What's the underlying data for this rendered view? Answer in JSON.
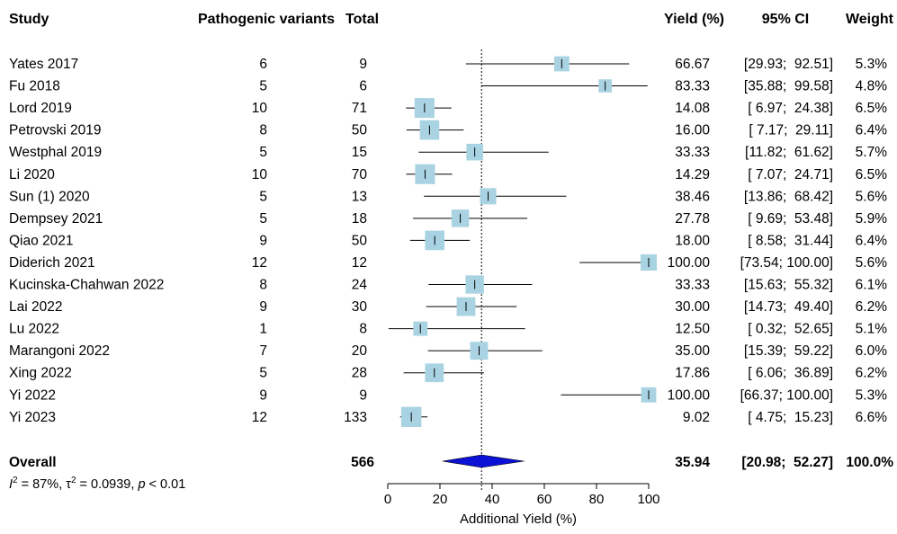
{
  "chart_data": {
    "type": "forest",
    "headers": {
      "study": "Study",
      "events": "Pathogenic variants",
      "total": "Total",
      "yield": "Yield (%)",
      "ci": "95% CI",
      "weight": "Weight"
    },
    "rows": [
      {
        "study": "Yates 2017",
        "events": "6",
        "total": "9",
        "yield": 66.67,
        "ci_low": 29.93,
        "ci_high": 92.51,
        "yield_text": "66.67",
        "ci_text": "[29.93;  92.51]",
        "weight": 5.3,
        "weight_text": "5.3%"
      },
      {
        "study": "Fu 2018",
        "events": "5",
        "total": "6",
        "yield": 83.33,
        "ci_low": 35.88,
        "ci_high": 99.58,
        "yield_text": "83.33",
        "ci_text": "[35.88;  99.58]",
        "weight": 4.8,
        "weight_text": "4.8%"
      },
      {
        "study": "Lord 2019",
        "events": "10",
        "total": "71",
        "yield": 14.08,
        "ci_low": 6.97,
        "ci_high": 24.38,
        "yield_text": "14.08",
        "ci_text": "[ 6.97;  24.38]",
        "weight": 6.5,
        "weight_text": "6.5%"
      },
      {
        "study": "Petrovski 2019",
        "events": "8",
        "total": "50",
        "yield": 16.0,
        "ci_low": 7.17,
        "ci_high": 29.11,
        "yield_text": "16.00",
        "ci_text": "[ 7.17;  29.11]",
        "weight": 6.4,
        "weight_text": "6.4%"
      },
      {
        "study": "Westphal 2019",
        "events": "5",
        "total": "15",
        "yield": 33.33,
        "ci_low": 11.82,
        "ci_high": 61.62,
        "yield_text": "33.33",
        "ci_text": "[11.82;  61.62]",
        "weight": 5.7,
        "weight_text": "5.7%"
      },
      {
        "study": "Li 2020",
        "events": "10",
        "total": "70",
        "yield": 14.29,
        "ci_low": 7.07,
        "ci_high": 24.71,
        "yield_text": "14.29",
        "ci_text": "[ 7.07;  24.71]",
        "weight": 6.5,
        "weight_text": "6.5%"
      },
      {
        "study": "Sun (1) 2020",
        "events": "5",
        "total": "13",
        "yield": 38.46,
        "ci_low": 13.86,
        "ci_high": 68.42,
        "yield_text": "38.46",
        "ci_text": "[13.86;  68.42]",
        "weight": 5.6,
        "weight_text": "5.6%"
      },
      {
        "study": "Dempsey 2021",
        "events": "5",
        "total": "18",
        "yield": 27.78,
        "ci_low": 9.69,
        "ci_high": 53.48,
        "yield_text": "27.78",
        "ci_text": "[ 9.69;  53.48]",
        "weight": 5.9,
        "weight_text": "5.9%"
      },
      {
        "study": "Qiao 2021",
        "events": "9",
        "total": "50",
        "yield": 18.0,
        "ci_low": 8.58,
        "ci_high": 31.44,
        "yield_text": "18.00",
        "ci_text": "[ 8.58;  31.44]",
        "weight": 6.4,
        "weight_text": "6.4%"
      },
      {
        "study": "Diderich 2021",
        "events": "12",
        "total": "12",
        "yield": 100.0,
        "ci_low": 73.54,
        "ci_high": 100.0,
        "yield_text": "100.00",
        "ci_text": "[73.54; 100.00]",
        "weight": 5.6,
        "weight_text": "5.6%"
      },
      {
        "study": "Kucinska-Chahwan 2022",
        "events": "8",
        "total": "24",
        "yield": 33.33,
        "ci_low": 15.63,
        "ci_high": 55.32,
        "yield_text": "33.33",
        "ci_text": "[15.63;  55.32]",
        "weight": 6.1,
        "weight_text": "6.1%"
      },
      {
        "study": "Lai 2022",
        "events": "9",
        "total": "30",
        "yield": 30.0,
        "ci_low": 14.73,
        "ci_high": 49.4,
        "yield_text": "30.00",
        "ci_text": "[14.73;  49.40]",
        "weight": 6.2,
        "weight_text": "6.2%"
      },
      {
        "study": "Lu 2022",
        "events": "1",
        "total": "8",
        "yield": 12.5,
        "ci_low": 0.32,
        "ci_high": 52.65,
        "yield_text": "12.50",
        "ci_text": "[ 0.32;  52.65]",
        "weight": 5.1,
        "weight_text": "5.1%"
      },
      {
        "study": "Marangoni 2022",
        "events": "7",
        "total": "20",
        "yield": 35.0,
        "ci_low": 15.39,
        "ci_high": 59.22,
        "yield_text": "35.00",
        "ci_text": "[15.39;  59.22]",
        "weight": 6.0,
        "weight_text": "6.0%"
      },
      {
        "study": "Xing 2022",
        "events": "5",
        "total": "28",
        "yield": 17.86,
        "ci_low": 6.06,
        "ci_high": 36.89,
        "yield_text": "17.86",
        "ci_text": "[ 6.06;  36.89]",
        "weight": 6.2,
        "weight_text": "6.2%"
      },
      {
        "study": "Yi 2022",
        "events": "9",
        "total": "9",
        "yield": 100.0,
        "ci_low": 66.37,
        "ci_high": 100.0,
        "yield_text": "100.00",
        "ci_text": "[66.37; 100.00]",
        "weight": 5.3,
        "weight_text": "5.3%"
      },
      {
        "study": "Yi 2023",
        "events": "12",
        "total": "133",
        "yield": 9.02,
        "ci_low": 4.75,
        "ci_high": 15.23,
        "yield_text": "9.02",
        "ci_text": "[ 4.75;  15.23]",
        "weight": 6.6,
        "weight_text": "6.6%"
      }
    ],
    "overall": {
      "label": "Overall",
      "total": "566",
      "yield": 35.94,
      "ci_low": 20.98,
      "ci_high": 52.27,
      "yield_text": "35.94",
      "ci_text": "[20.98;  52.27]",
      "weight_text": "100.0%"
    },
    "heterogeneity": {
      "i2_symbol": "I",
      "i2_sup": "2",
      "i2_rest": " = 87%, ",
      "tau_symbol": "τ",
      "tau_sup": "2",
      "tau_rest": " = 0.0939, ",
      "p_symbol": "p",
      "p_rest": " < 0.01"
    },
    "xaxis": {
      "label": "Additional Yield (%)",
      "ticks": [
        0,
        20,
        40,
        60,
        80,
        100
      ],
      "range": [
        0,
        100
      ]
    },
    "reference_line": 35.94,
    "colors": {
      "square_fill": "#a9d3e2",
      "diamond_fill": "#0b12d6",
      "line": "#000000"
    }
  }
}
